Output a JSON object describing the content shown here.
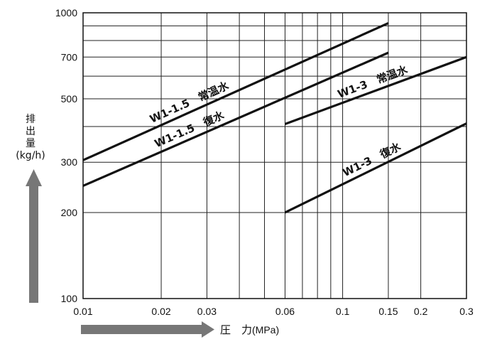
{
  "chart_data": {
    "type": "line",
    "x_scale": "log",
    "y_scale": "log",
    "xlim": [
      0.01,
      0.3
    ],
    "ylim": [
      100,
      1000
    ],
    "x_ticks": [
      0.01,
      0.02,
      0.03,
      0.06,
      0.1,
      0.15,
      0.2,
      0.3
    ],
    "x_tick_labels": [
      "0.01",
      "0.02",
      "0.03",
      "0.06",
      "0.1",
      "0.15",
      "0.2",
      "0.3"
    ],
    "y_ticks": [
      100,
      200,
      300,
      500,
      700,
      1000
    ],
    "y_tick_labels": [
      "100",
      "200",
      "300",
      "500",
      "700",
      "1000"
    ],
    "x_grid": [
      0.01,
      0.02,
      0.03,
      0.04,
      0.05,
      0.06,
      0.07,
      0.08,
      0.09,
      0.1,
      0.15,
      0.2,
      0.3
    ],
    "y_grid": [
      100,
      200,
      300,
      400,
      500,
      600,
      700,
      800,
      900,
      1000
    ],
    "grid": true,
    "ylabel": {
      "line1": "排",
      "line2": "出",
      "line3": "量",
      "unit": "(kg/h)"
    },
    "xlabel": {
      "text": "圧　力",
      "unit": "(MPa)"
    },
    "series": [
      {
        "name": "W1-1.5　常温水",
        "x": [
          0.01,
          0.15
        ],
        "y": [
          305,
          920
        ]
      },
      {
        "name": "W1-1.5　復水",
        "x": [
          0.01,
          0.15
        ],
        "y": [
          248,
          725
        ]
      },
      {
        "name": "W1-3　常温水",
        "x": [
          0.06,
          0.3
        ],
        "y": [
          408,
          700
        ]
      },
      {
        "name": "W1-3　復水",
        "x": [
          0.06,
          0.3
        ],
        "y": [
          200,
          410
        ]
      }
    ]
  }
}
